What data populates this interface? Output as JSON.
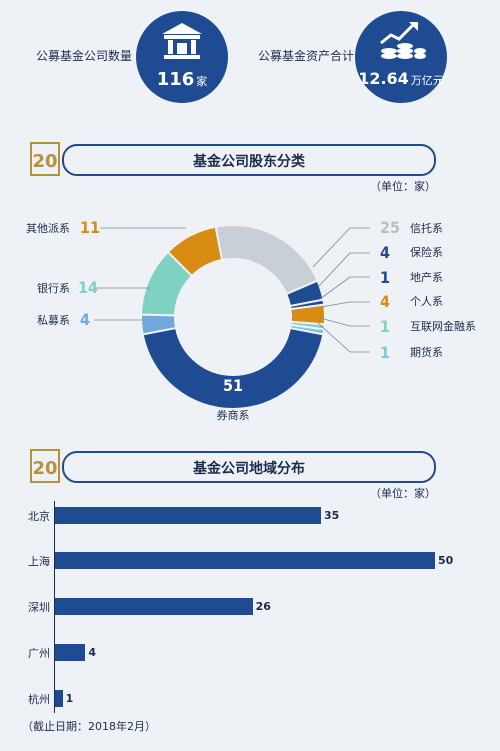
{
  "kpis": [
    {
      "label": "公募基金公司数量",
      "value": "116",
      "unit": "家"
    },
    {
      "label": "公募基金资产合计",
      "value": "12.64",
      "unit": "万亿元"
    }
  ],
  "sections": {
    "shareholders": {
      "title": "基金公司股东分类",
      "unit": "（单位：家）"
    },
    "regions": {
      "title": "基金公司地域分布",
      "unit": "（单位：家）"
    }
  },
  "colors": {
    "blue": "#1f4b93",
    "orange": "#d98c12",
    "teal": "#7fd1c2",
    "gray": "#c9cfd6",
    "lightblue": "#6ea8dc",
    "cyan": "#79c7d9"
  },
  "chart_data": [
    {
      "type": "pie",
      "title": "基金公司股东分类",
      "unit": "（单位：家）",
      "categories": [
        "券商系",
        "私募系",
        "银行系",
        "其他派系",
        "信托系",
        "保险系",
        "地产系",
        "个人系",
        "互联网金融系",
        "期货系"
      ],
      "values": [
        51,
        4,
        14,
        11,
        25,
        4,
        1,
        4,
        1,
        1
      ],
      "colors": [
        "#1f4b93",
        "#6ea8dc",
        "#7fd1c2",
        "#d98c12",
        "#c9cfd6",
        "#1f4b93",
        "#1f4b93",
        "#d98c12",
        "#7fd1c2",
        "#79c7d9"
      ]
    },
    {
      "type": "bar",
      "orientation": "horizontal",
      "title": "基金公司地域分布",
      "unit": "（单位：家）",
      "categories": [
        "北京",
        "上海",
        "深圳",
        "广州",
        "杭州"
      ],
      "values": [
        35,
        50,
        26,
        4,
        1
      ]
    }
  ],
  "note": "（截止日期：2018年2月）"
}
